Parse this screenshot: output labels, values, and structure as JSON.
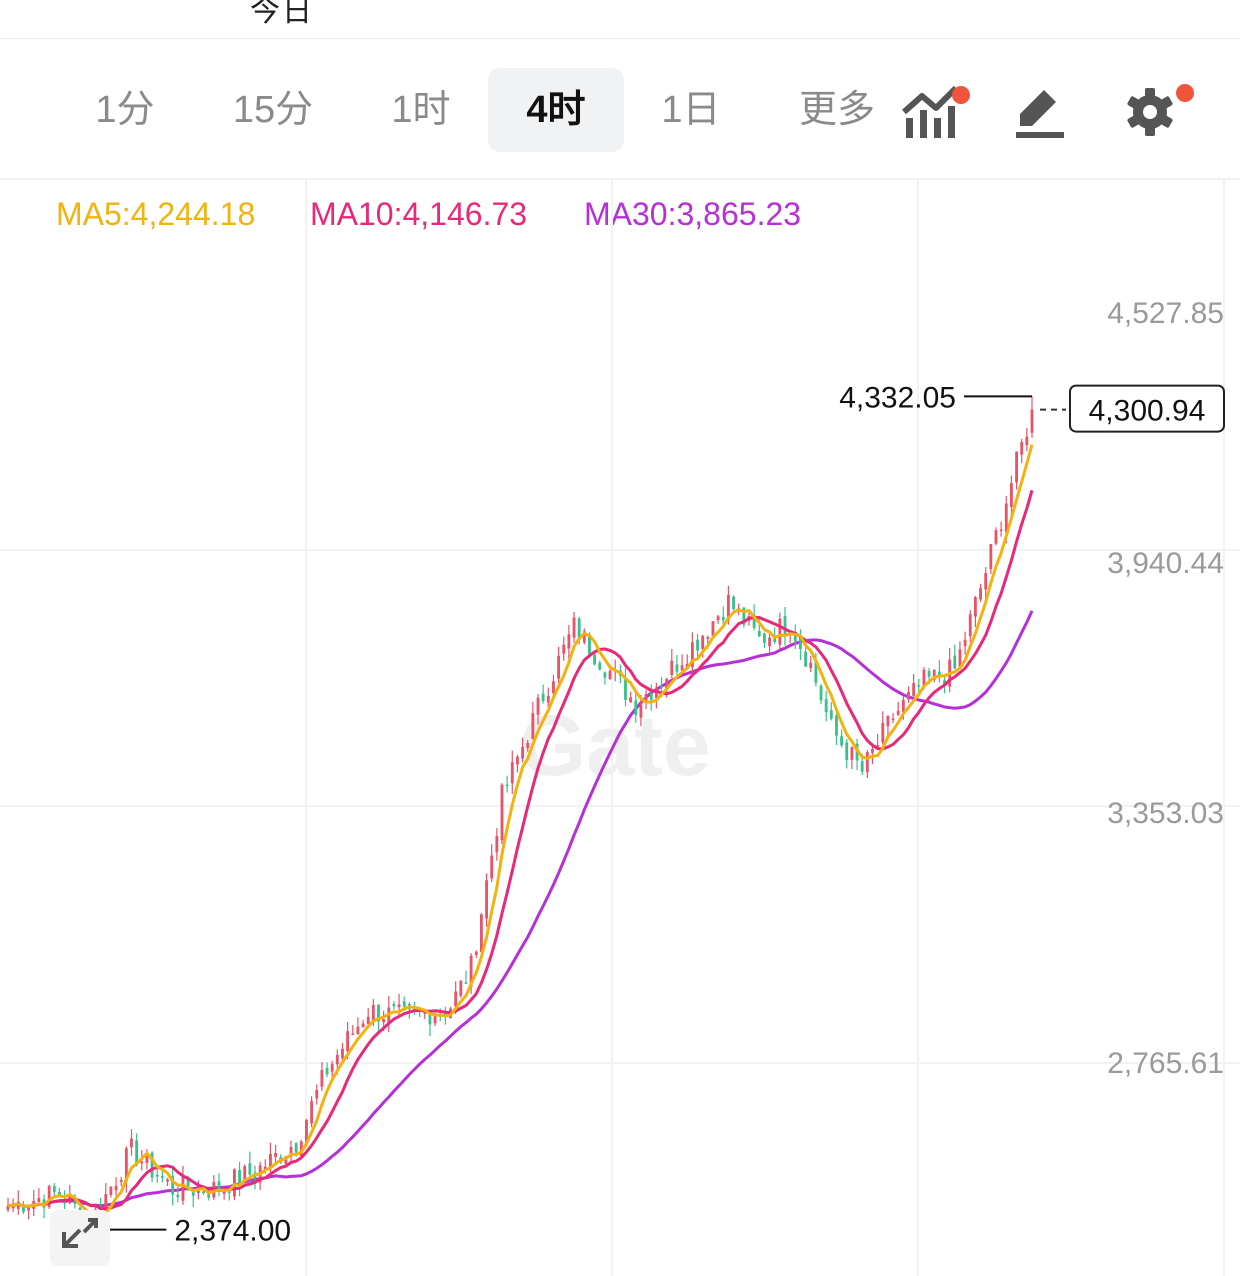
{
  "top_strip_text": "今日",
  "tabs": [
    {
      "label": "1分",
      "active": false
    },
    {
      "label": "15分",
      "active": false
    },
    {
      "label": "1时",
      "active": false
    },
    {
      "label": "4时",
      "active": true
    },
    {
      "label": "1日",
      "active": false
    },
    {
      "label": "更多",
      "active": false
    }
  ],
  "tools": {
    "indicator_icon": "indicator-chart-icon",
    "draw_icon": "pencil-draw-icon",
    "settings_icon": "gear-icon",
    "badge_color": "#f0553b"
  },
  "ma": {
    "ma5_label": "MA5:4,244.18",
    "ma10_label": "MA10:4,146.73",
    "ma30_label": "MA30:3,865.23",
    "ma5_color": "#f2b20f",
    "ma10_color": "#e8297a",
    "ma30_color": "#b530d6"
  },
  "watermark": "Gate",
  "chart_data": {
    "type": "candlestick",
    "y_ticks": [
      4527.85,
      3940.44,
      3353.03,
      2765.61
    ],
    "y_tick_labels": [
      "4,527.85",
      "3,940.44",
      "3,353.03",
      "2,765.61"
    ],
    "ylim": [
      2290,
      4660
    ],
    "high_label": "4,332.05",
    "low_label": "2,374.00",
    "last_price_label": "4,300.94",
    "up_color": "#e8536a",
    "down_color": "#3ac18a",
    "grid": true,
    "candle_count": 200,
    "anchors": [
      {
        "i": 0,
        "close": 2430
      },
      {
        "i": 10,
        "close": 2460
      },
      {
        "i": 16,
        "close": 2390
      },
      {
        "i": 24,
        "close": 2560
      },
      {
        "i": 32,
        "close": 2470
      },
      {
        "i": 40,
        "close": 2470
      },
      {
        "i": 48,
        "close": 2510
      },
      {
        "i": 56,
        "close": 2580
      },
      {
        "i": 62,
        "close": 2750
      },
      {
        "i": 70,
        "close": 2890
      },
      {
        "i": 78,
        "close": 2870
      },
      {
        "i": 86,
        "close": 2900
      },
      {
        "i": 90,
        "close": 2990
      },
      {
        "i": 96,
        "close": 3390
      },
      {
        "i": 104,
        "close": 3630
      },
      {
        "i": 110,
        "close": 3790
      },
      {
        "i": 116,
        "close": 3700
      },
      {
        "i": 122,
        "close": 3610
      },
      {
        "i": 128,
        "close": 3680
      },
      {
        "i": 134,
        "close": 3760
      },
      {
        "i": 140,
        "close": 3850
      },
      {
        "i": 146,
        "close": 3760
      },
      {
        "i": 152,
        "close": 3800
      },
      {
        "i": 156,
        "close": 3700
      },
      {
        "i": 160,
        "close": 3550
      },
      {
        "i": 166,
        "close": 3450
      },
      {
        "i": 172,
        "close": 3580
      },
      {
        "i": 178,
        "close": 3660
      },
      {
        "i": 184,
        "close": 3690
      },
      {
        "i": 190,
        "close": 3920
      },
      {
        "i": 195,
        "close": 4130
      },
      {
        "i": 199,
        "close": 4300.94
      }
    ],
    "high_index": 199,
    "low_index": 16
  }
}
